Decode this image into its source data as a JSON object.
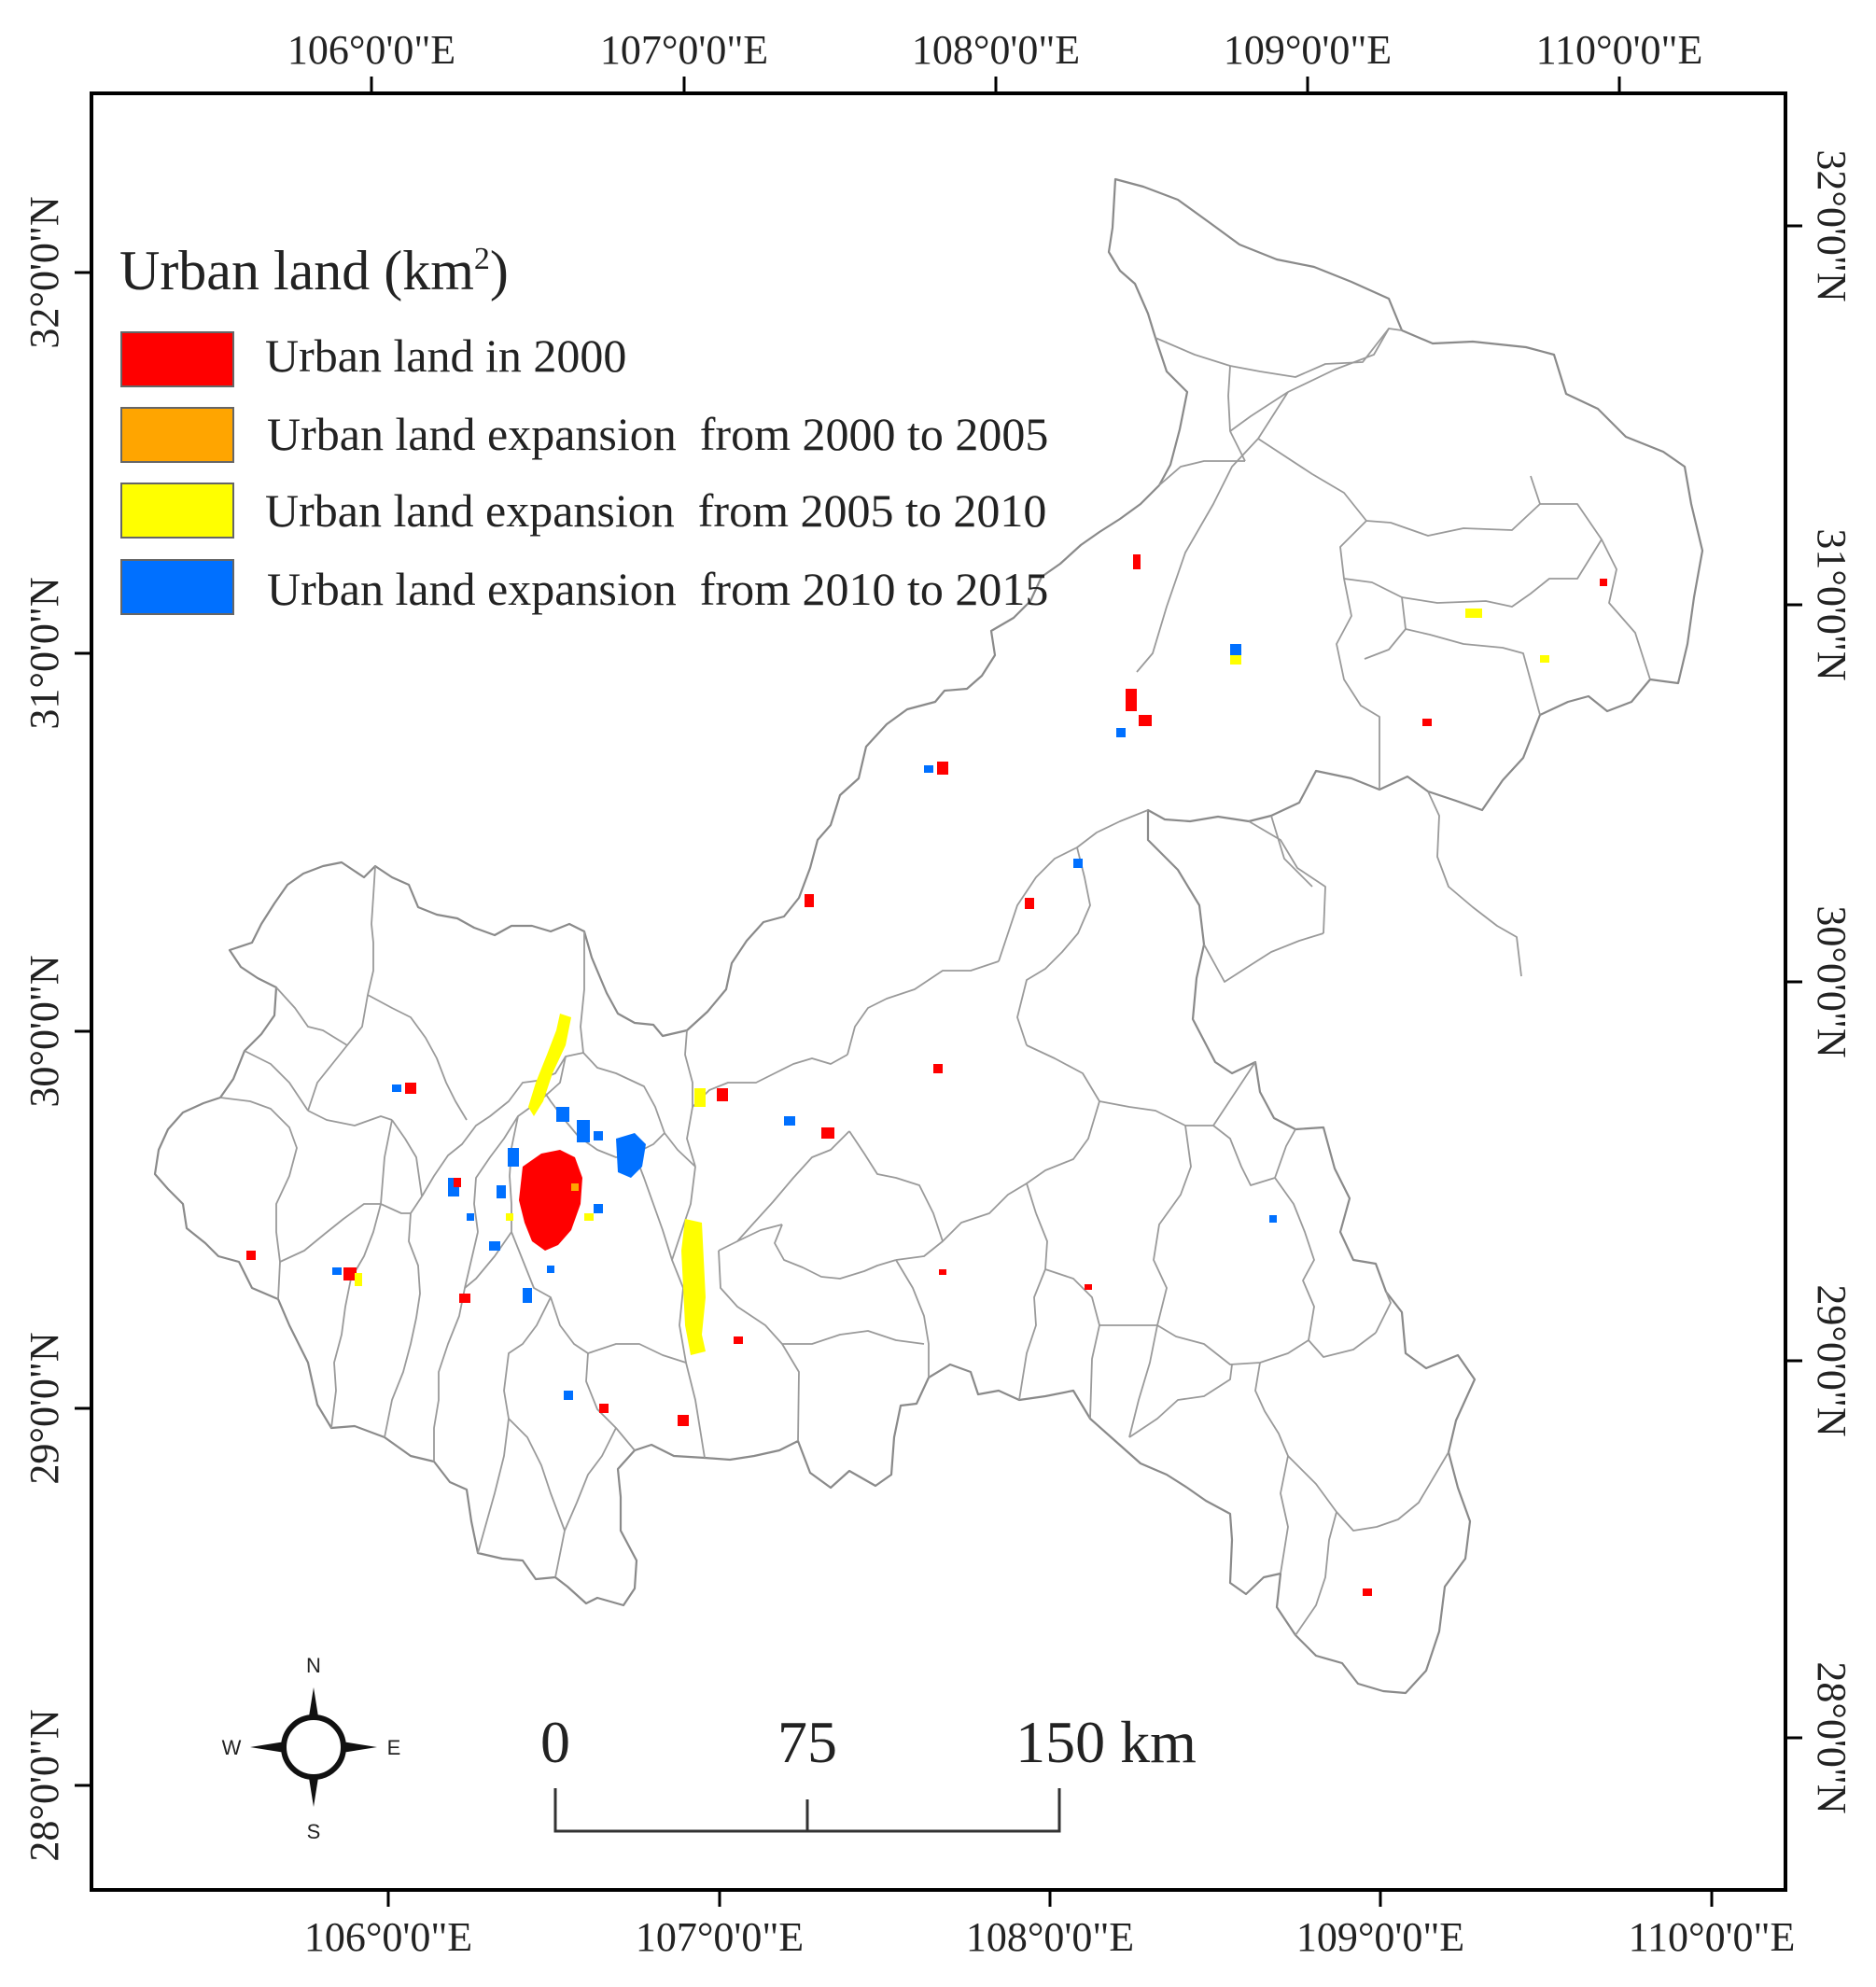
{
  "map": {
    "top_ticks": [
      "106°0'0\"E",
      "107°0'0\"E",
      "108°0'0\"E",
      "109°0'0\"E",
      "110°0'0\"E"
    ],
    "bottom_ticks": [
      "106°0'0\"E",
      "107°0'0\"E",
      "108°0'0\"E",
      "109°0'0\"E",
      "110°0'0\"E"
    ],
    "left_ticks": [
      "32°0'0\"N",
      "31°0'0\"N",
      "30°0'0\"N",
      "29°0'0\"N",
      "28°0'0\"N"
    ],
    "right_ticks": [
      "32°0'0\"N",
      "31°0'0\"N",
      "30°0'0\"N",
      "29°0'0\"N",
      "28°0'0\"N"
    ]
  },
  "legend": {
    "title": "Urban land (km",
    "title_sup": "2",
    "title_close": ")",
    "items": [
      {
        "label": "Urban land in 2000",
        "color": "#ff0000"
      },
      {
        "label": "Urban land expansion  from 2000 to 2005",
        "color": "#ffa500"
      },
      {
        "label": "Urban land expansion  from 2005 to 2010",
        "color": "#ffff00"
      },
      {
        "label": "Urban land expansion  from 2010 to 2015",
        "color": "#0070ff"
      }
    ]
  },
  "scale_bar": {
    "labels": [
      "0",
      "75",
      "150 km"
    ]
  },
  "compass": {
    "n": "N",
    "s": "S",
    "e": "E",
    "w": "W"
  }
}
